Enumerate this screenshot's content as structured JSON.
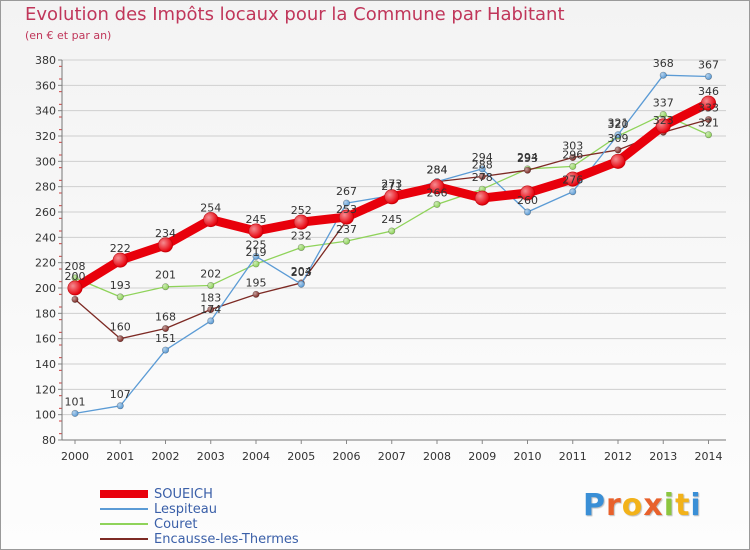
{
  "title": "Evolution des Impôts locaux pour la Commune par Habitant",
  "subtitle": "(en € et par an)",
  "logo": "Proxiti",
  "chart_data": {
    "type": "line",
    "x": [
      "2000",
      "2001",
      "2002",
      "2003",
      "2004",
      "2005",
      "2006",
      "2007",
      "2008",
      "2009",
      "2010",
      "2011",
      "2012",
      "2013",
      "2014"
    ],
    "ylim": [
      80,
      380
    ],
    "yticks": [
      80,
      100,
      120,
      140,
      160,
      180,
      200,
      220,
      240,
      260,
      280,
      300,
      320,
      340,
      360,
      380
    ],
    "grid": "horizontal",
    "legend_placement": "bottom-left",
    "series": [
      {
        "name": "SOUEICH",
        "color": "#e8000b",
        "values": [
          200,
          222,
          234,
          254,
          245,
          252,
          256,
          272,
          280,
          271,
          275,
          286,
          300,
          328,
          346
        ],
        "labels": [
          true,
          true,
          true,
          true,
          true,
          true,
          false,
          false,
          false,
          false,
          false,
          false,
          false,
          false,
          true
        ]
      },
      {
        "name": "Lespiteau",
        "color": "#5b9bd5",
        "values": [
          101,
          107,
          151,
          174,
          225,
          203,
          267,
          273,
          284,
          294,
          260,
          276,
          321,
          368,
          367
        ],
        "labels": [
          true,
          true,
          true,
          true,
          true,
          true,
          true,
          true,
          true,
          true,
          true,
          true,
          true,
          true,
          true
        ]
      },
      {
        "name": "Couret",
        "color": "#8fd35a",
        "values": [
          208,
          193,
          201,
          202,
          219,
          232,
          237,
          245,
          266,
          278,
          294,
          296,
          320,
          337,
          321
        ],
        "labels": [
          true,
          true,
          true,
          true,
          true,
          true,
          true,
          true,
          true,
          true,
          true,
          true,
          true,
          true,
          true
        ]
      },
      {
        "name": "Encausse-les-Thermes",
        "color": "#7d2a24",
        "values": [
          191,
          160,
          168,
          183,
          195,
          204,
          253,
          271,
          284,
          288,
          293,
          303,
          309,
          323,
          333
        ],
        "labels": [
          false,
          true,
          true,
          true,
          true,
          true,
          true,
          true,
          true,
          true,
          true,
          true,
          true,
          true,
          true
        ]
      }
    ]
  }
}
